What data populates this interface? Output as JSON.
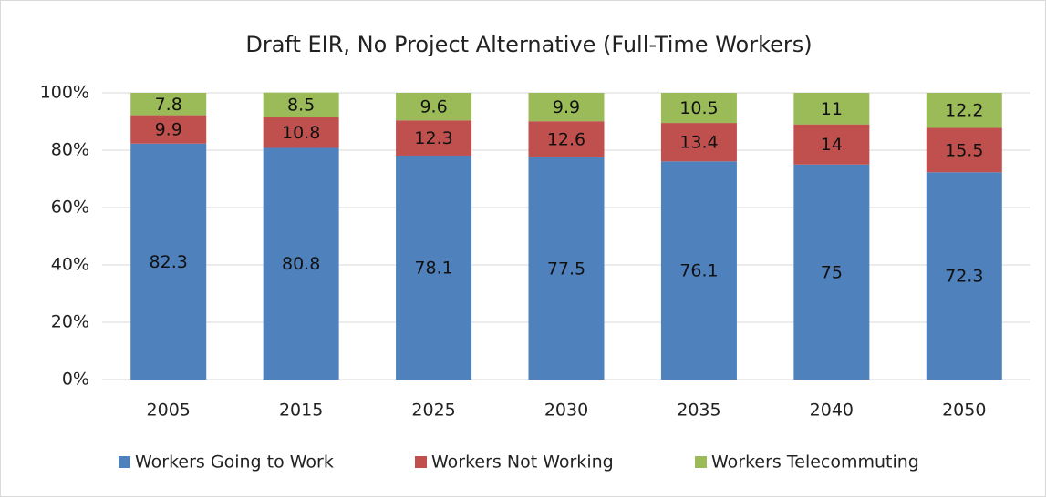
{
  "chart_data": {
    "type": "stacked_bar",
    "title": "Draft EIR, No Project Alternative (Full-Time Workers)",
    "categories": [
      "2005",
      "2015",
      "2025",
      "2030",
      "2035",
      "2040",
      "2050"
    ],
    "series": [
      {
        "name": "Workers Going to Work",
        "color": "#4f81bd",
        "values": [
          82.3,
          80.8,
          78.1,
          77.5,
          76.1,
          75,
          72.3
        ]
      },
      {
        "name": "Workers Not Working",
        "color": "#c0504d",
        "values": [
          9.9,
          10.8,
          12.3,
          12.6,
          13.4,
          14,
          15.5
        ]
      },
      {
        "name": "Workers Telecommuting",
        "color": "#9bbb59",
        "values": [
          7.8,
          8.5,
          9.6,
          9.9,
          10.5,
          11,
          12.2
        ]
      }
    ],
    "ylim": [
      0,
      100
    ],
    "yticks": [
      {
        "value": 0,
        "label": "0%"
      },
      {
        "value": 20,
        "label": "20%"
      },
      {
        "value": 40,
        "label": "40%"
      },
      {
        "value": 60,
        "label": "60%"
      },
      {
        "value": 80,
        "label": "80%"
      },
      {
        "value": 100,
        "label": "100%"
      }
    ],
    "grid": true,
    "legend": "bottom"
  }
}
